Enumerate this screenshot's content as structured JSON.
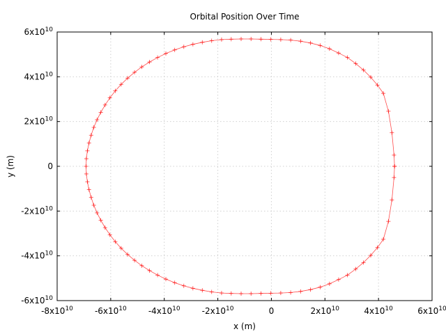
{
  "chart_data": {
    "type": "line",
    "title": "Orbital Position Over Time",
    "xlabel": "x (m)",
    "ylabel": "y (m)",
    "xlim": [
      -80000000000.0,
      60000000000.0
    ],
    "ylim": [
      -60000000000.0,
      60000000000.0
    ],
    "grid": true,
    "x_ticks": [
      {
        "value": -80000000000.0,
        "base": "-8x10",
        "exp": "10"
      },
      {
        "value": -60000000000.0,
        "base": "-6x10",
        "exp": "10"
      },
      {
        "value": -40000000000.0,
        "base": "-4x10",
        "exp": "10"
      },
      {
        "value": -20000000000.0,
        "base": "-2x10",
        "exp": "10"
      },
      {
        "value": 0,
        "base": "0",
        "exp": ""
      },
      {
        "value": 20000000000.0,
        "base": "2x10",
        "exp": "10"
      },
      {
        "value": 40000000000.0,
        "base": "4x10",
        "exp": "10"
      },
      {
        "value": 60000000000.0,
        "base": "6x10",
        "exp": "10"
      }
    ],
    "y_ticks": [
      {
        "value": 60000000000.0,
        "base": "6x10",
        "exp": "10"
      },
      {
        "value": 40000000000.0,
        "base": "4x10",
        "exp": "10"
      },
      {
        "value": 20000000000.0,
        "base": "2x10",
        "exp": "10"
      },
      {
        "value": 0,
        "base": "0",
        "exp": ""
      },
      {
        "value": -20000000000.0,
        "base": "-2x10",
        "exp": "10"
      },
      {
        "value": -40000000000.0,
        "base": "-4x10",
        "exp": "10"
      },
      {
        "value": -60000000000.0,
        "base": "-6x10",
        "exp": "10"
      }
    ],
    "series": [
      {
        "color": "#ff0000",
        "marker": "plus",
        "points": [
          [
            46000000000.0,
            0.0
          ],
          [
            45800000000.0,
            -5000000000.0
          ],
          [
            45000000000.0,
            -15000000000.0
          ],
          [
            43700000000.0,
            -24600000000.0
          ],
          [
            41800000000.0,
            -32600000000.0
          ],
          [
            39600000000.0,
            -36300000000.0
          ],
          [
            37100000000.0,
            -39800000000.0
          ],
          [
            34400000000.0,
            -43000000000.0
          ],
          [
            31500000000.0,
            -45900000000.0
          ],
          [
            28400000000.0,
            -48600000000.0
          ],
          [
            25100000000.0,
            -50600000000.0
          ],
          [
            21700000000.0,
            -52500000000.0
          ],
          [
            18200000000.0,
            -54000000000.0
          ],
          [
            14600000000.0,
            -55100000000.0
          ],
          [
            10900000000.0,
            -55900000000.0
          ],
          [
            7200000000.0,
            -56400000000.0
          ],
          [
            3500000000.0,
            -56600000000.0
          ],
          [
            -200000000.0,
            -56700000000.0
          ],
          [
            -3900000000.0,
            -56800000000.0
          ],
          [
            -7600000000.0,
            -56900000000.0
          ],
          [
            -11300000000.0,
            -56900000000.0
          ],
          [
            -15000000000.0,
            -56800000000.0
          ],
          [
            -18600000000.0,
            -56600000000.0
          ],
          [
            -22300000000.0,
            -56100000000.0
          ],
          [
            -25800000000.0,
            -55400000000.0
          ],
          [
            -29300000000.0,
            -54500000000.0
          ],
          [
            -32700000000.0,
            -53400000000.0
          ],
          [
            -36100000000.0,
            -52000000000.0
          ],
          [
            -39400000000.0,
            -50400000000.0
          ],
          [
            -42500000000.0,
            -48600000000.0
          ],
          [
            -45500000000.0,
            -46600000000.0
          ],
          [
            -48400000000.0,
            -44400000000.0
          ],
          [
            -51100000000.0,
            -42000000000.0
          ],
          [
            -53700000000.0,
            -39400000000.0
          ],
          [
            -56100000000.0,
            -36600000000.0
          ],
          [
            -58300000000.0,
            -33700000000.0
          ],
          [
            -60300000000.0,
            -30600000000.0
          ],
          [
            -62100000000.0,
            -27400000000.0
          ],
          [
            -63700000000.0,
            -24100000000.0
          ],
          [
            -65100000000.0,
            -20800000000.0
          ],
          [
            -66300000000.0,
            -17400000000.0
          ],
          [
            -67300000000.0,
            -13900000000.0
          ],
          [
            -68100000000.0,
            -10400000000.0
          ],
          [
            -68700000000.0,
            -6900000000.0
          ],
          [
            -69100000000.0,
            -3400000000.0
          ],
          [
            -69200000000.0,
            0.0
          ],
          [
            -69100000000.0,
            3400000000.0
          ],
          [
            -68700000000.0,
            6900000000.0
          ],
          [
            -68100000000.0,
            10400000000.0
          ],
          [
            -67300000000.0,
            13900000000.0
          ],
          [
            -66300000000.0,
            17400000000.0
          ],
          [
            -65100000000.0,
            20800000000.0
          ],
          [
            -63700000000.0,
            24100000000.0
          ],
          [
            -62100000000.0,
            27400000000.0
          ],
          [
            -60300000000.0,
            30600000000.0
          ],
          [
            -58300000000.0,
            33700000000.0
          ],
          [
            -56100000000.0,
            36600000000.0
          ],
          [
            -53700000000.0,
            39400000000.0
          ],
          [
            -51100000000.0,
            42000000000.0
          ],
          [
            -48400000000.0,
            44400000000.0
          ],
          [
            -45500000000.0,
            46600000000.0
          ],
          [
            -42500000000.0,
            48600000000.0
          ],
          [
            -39400000000.0,
            50400000000.0
          ],
          [
            -36100000000.0,
            52000000000.0
          ],
          [
            -32700000000.0,
            53400000000.0
          ],
          [
            -29300000000.0,
            54500000000.0
          ],
          [
            -25800000000.0,
            55400000000.0
          ],
          [
            -22300000000.0,
            56100000000.0
          ],
          [
            -18600000000.0,
            56600000000.0
          ],
          [
            -15000000000.0,
            56800000000.0
          ],
          [
            -11300000000.0,
            56900000000.0
          ],
          [
            -7600000000.0,
            56900000000.0
          ],
          [
            -3900000000.0,
            56800000000.0
          ],
          [
            -200000000.0,
            56700000000.0
          ],
          [
            3500000000.0,
            56600000000.0
          ],
          [
            7200000000.0,
            56400000000.0
          ],
          [
            10900000000.0,
            55900000000.0
          ],
          [
            14600000000.0,
            55100000000.0
          ],
          [
            18200000000.0,
            54000000000.0
          ],
          [
            21700000000.0,
            52500000000.0
          ],
          [
            25100000000.0,
            50600000000.0
          ],
          [
            28400000000.0,
            48600000000.0
          ],
          [
            31500000000.0,
            45900000000.0
          ],
          [
            34400000000.0,
            43000000000.0
          ],
          [
            37100000000.0,
            39800000000.0
          ],
          [
            39600000000.0,
            36300000000.0
          ],
          [
            41800000000.0,
            32600000000.0
          ],
          [
            43700000000.0,
            24600000000.0
          ],
          [
            45000000000.0,
            15000000000.0
          ],
          [
            45800000000.0,
            5000000000.0
          ],
          [
            46000000000.0,
            0.0
          ]
        ]
      }
    ]
  }
}
